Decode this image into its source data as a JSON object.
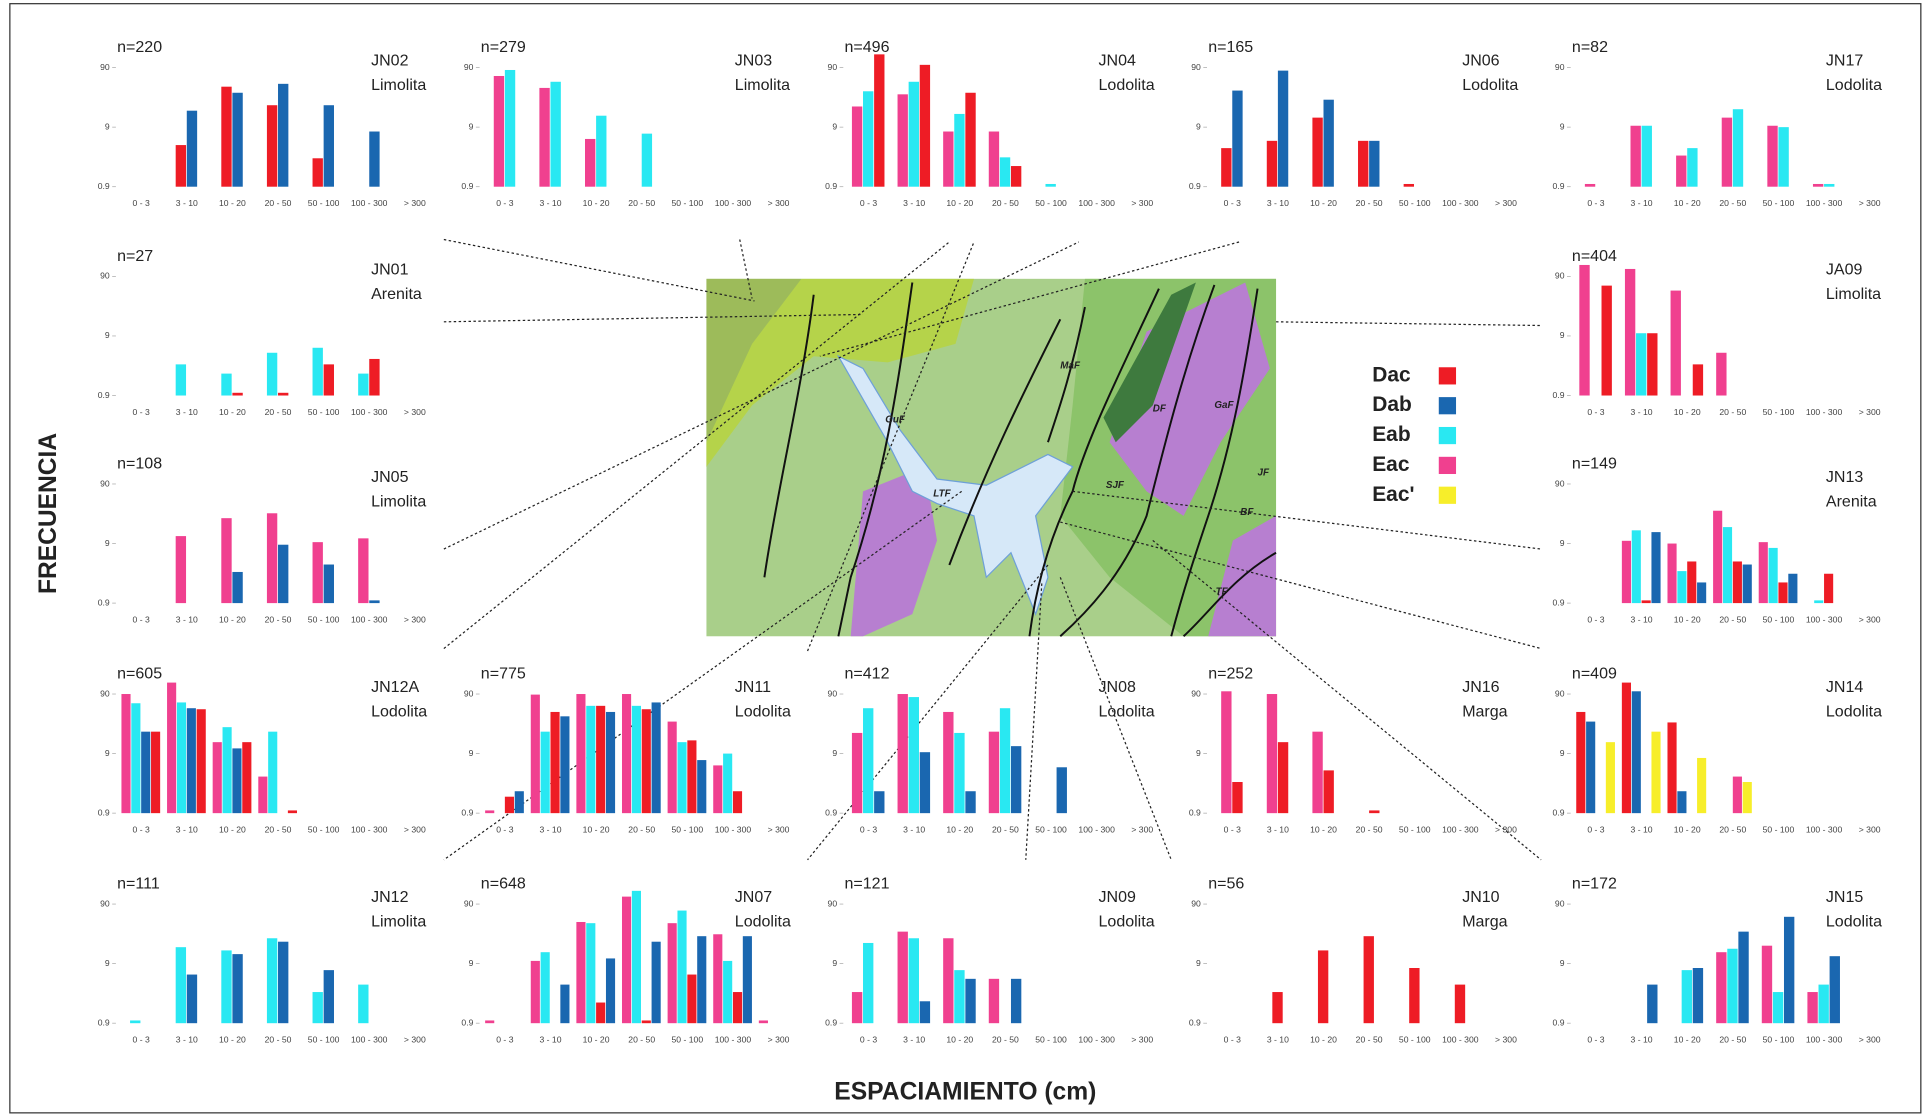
{
  "axis_titles": {
    "y": "FRECUENCIA",
    "x": "ESPACIAMIENTO (cm)"
  },
  "legend": [
    {
      "name": "Dac",
      "color": "#ee1c25"
    },
    {
      "name": "Dab",
      "color": "#1a67b0"
    },
    {
      "name": "Eab",
      "color": "#29e8f2"
    },
    {
      "name": "Eac",
      "color": "#f0408f"
    },
    {
      "name": "Eac'",
      "color": "#f7ee2a"
    }
  ],
  "map": {
    "labels": [
      "MaF",
      "GuF",
      "DF",
      "GaF",
      "SJF",
      "LTF",
      "JF",
      "BF",
      "TF"
    ]
  },
  "chart_data": [
    {
      "type": "bar",
      "annotation": "n=220",
      "title": "JN02",
      "subtitle": "Limolita",
      "log_scale": true,
      "ylim": [
        0.9,
        200
      ],
      "yticks": [
        0.9,
        9,
        90
      ],
      "categories": [
        "0 - 3",
        "3 - 10",
        "10 - 20",
        "20 - 50",
        "50 - 100",
        "100 - 300",
        "> 300"
      ],
      "series": [
        {
          "name": "Dac",
          "values": [
            null,
            4.5,
            43,
            21,
            2.7,
            null,
            null
          ]
        },
        {
          "name": "Dab",
          "values": [
            null,
            17,
            34,
            48,
            21,
            7.6,
            null
          ]
        }
      ]
    },
    {
      "type": "bar",
      "annotation": "n=279",
      "title": "JN03",
      "subtitle": "Limolita",
      "log_scale": true,
      "ylim": [
        0.9,
        200
      ],
      "yticks": [
        0.9,
        9,
        90
      ],
      "categories": [
        "0 - 3",
        "3 - 10",
        "10 - 20",
        "20 - 50",
        "50 - 100",
        "100 - 300",
        "> 300"
      ],
      "series": [
        {
          "name": "Eac",
          "values": [
            65,
            41,
            5.7,
            null,
            null,
            null,
            null
          ]
        },
        {
          "name": "Eab",
          "values": [
            82,
            52,
            14,
            7,
            null,
            null,
            null
          ]
        }
      ]
    },
    {
      "type": "bar",
      "annotation": "n=496",
      "title": "JN04",
      "subtitle": "Lodolita",
      "log_scale": true,
      "ylim": [
        0.9,
        200
      ],
      "yticks": [
        0.9,
        9,
        90
      ],
      "categories": [
        "0 - 3",
        "3 - 10",
        "10 - 20",
        "20 - 50",
        "50 - 100",
        "100 - 300",
        "> 300"
      ],
      "series": [
        {
          "name": "Eac",
          "values": [
            20,
            32,
            7.6,
            7.6,
            null,
            null,
            null
          ]
        },
        {
          "name": "Eab",
          "values": [
            36,
            52,
            15,
            2.8,
            1.0,
            null,
            null
          ]
        },
        {
          "name": "Dac",
          "values": [
            150,
            100,
            34,
            2,
            null,
            null,
            null
          ]
        }
      ]
    },
    {
      "type": "bar",
      "annotation": "n=165",
      "title": "JN06",
      "subtitle": "Lodolita",
      "log_scale": true,
      "ylim": [
        0.9,
        200
      ],
      "yticks": [
        0.9,
        9,
        90
      ],
      "categories": [
        "0 - 3",
        "3 - 10",
        "10 - 20",
        "20 - 50",
        "50 - 100",
        "100 - 300",
        "> 300"
      ],
      "series": [
        {
          "name": "Dac",
          "values": [
            4,
            5.3,
            13,
            5.3,
            1.0,
            null,
            null
          ]
        },
        {
          "name": "Dab",
          "values": [
            37,
            80,
            26,
            5.3,
            null,
            null,
            null
          ]
        }
      ]
    },
    {
      "type": "bar",
      "annotation": "n=82",
      "title": "JN17",
      "subtitle": "Lodolita",
      "log_scale": true,
      "ylim": [
        0.9,
        200
      ],
      "yticks": [
        0.9,
        9,
        90
      ],
      "categories": [
        "0 - 3",
        "3 - 10",
        "10 - 20",
        "20 - 50",
        "50 - 100",
        "100 - 300",
        "> 300"
      ],
      "series": [
        {
          "name": "Eac",
          "values": [
            1.0,
            9.5,
            3,
            13,
            9.5,
            1.0,
            null
          ]
        },
        {
          "name": "Eab",
          "values": [
            null,
            9.5,
            4,
            18,
            9,
            1.0,
            null
          ]
        }
      ]
    },
    {
      "type": "bar",
      "annotation": "n=27",
      "title": "JN01",
      "subtitle": "Arenita",
      "log_scale": true,
      "ylim": [
        0.9,
        200
      ],
      "yticks": [
        0.9,
        9,
        90
      ],
      "categories": [
        "0 - 3",
        "3 - 10",
        "10 - 20",
        "20 - 50",
        "50 - 100",
        "100 - 300",
        "> 300"
      ],
      "series": [
        {
          "name": "Eab",
          "values": [
            null,
            3,
            2.1,
            4.7,
            5.7,
            2.1,
            null
          ]
        },
        {
          "name": "Dac",
          "values": [
            null,
            null,
            1.0,
            1.0,
            3,
            3.7,
            null
          ]
        }
      ]
    },
    {
      "type": "bar",
      "annotation": "n=404",
      "title": "JA09",
      "subtitle": "Limolita",
      "log_scale": true,
      "ylim": [
        0.9,
        200
      ],
      "yticks": [
        0.9,
        9,
        90
      ],
      "categories": [
        "0 - 3",
        "3 - 10",
        "10 - 20",
        "20 - 50",
        "50 - 100",
        "100 - 300",
        "> 300"
      ],
      "series": [
        {
          "name": "Eac",
          "values": [
            140,
            120,
            52,
            4.7,
            null,
            null,
            null
          ]
        },
        {
          "name": "Eab",
          "values": [
            null,
            10,
            null,
            null,
            null,
            null,
            null
          ]
        },
        {
          "name": "Dac",
          "values": [
            63,
            10,
            3,
            null,
            null,
            null,
            null
          ]
        }
      ]
    },
    {
      "type": "bar",
      "annotation": "n=108",
      "title": "JN05",
      "subtitle": "Limolita",
      "log_scale": true,
      "ylim": [
        0.9,
        200
      ],
      "yticks": [
        0.9,
        9,
        90
      ],
      "categories": [
        "0 - 3",
        "3 - 10",
        "10 - 20",
        "20 - 50",
        "50 - 100",
        "100 - 300",
        "> 300"
      ],
      "series": [
        {
          "name": "Eac",
          "values": [
            null,
            12,
            24,
            29,
            9.5,
            11,
            null
          ]
        },
        {
          "name": "Dab",
          "values": [
            null,
            null,
            3,
            8.6,
            4,
            1.0,
            null
          ]
        }
      ]
    },
    {
      "type": "bar",
      "annotation": "n=149",
      "title": "JN13",
      "subtitle": "Arenita",
      "log_scale": true,
      "ylim": [
        0.9,
        200
      ],
      "yticks": [
        0.9,
        9,
        90
      ],
      "categories": [
        "0 - 3",
        "3 - 10",
        "10 - 20",
        "20 - 50",
        "50 - 100",
        "100 - 300",
        "> 300"
      ],
      "series": [
        {
          "name": "Eac",
          "values": [
            null,
            10,
            9,
            32,
            9.5,
            null,
            null
          ]
        },
        {
          "name": "Eab",
          "values": [
            null,
            15,
            3.1,
            17,
            7.6,
            1.0,
            null
          ]
        },
        {
          "name": "Dac",
          "values": [
            null,
            1.0,
            4.5,
            4.5,
            2,
            2.8,
            null
          ]
        },
        {
          "name": "Dab",
          "values": [
            null,
            14,
            2,
            4,
            2.8,
            null,
            null
          ]
        }
      ]
    },
    {
      "type": "bar",
      "annotation": "n=605",
      "title": "JN12A",
      "subtitle": "Lodolita",
      "log_scale": true,
      "ylim": [
        0.9,
        200
      ],
      "yticks": [
        0.9,
        9,
        90
      ],
      "categories": [
        "0 - 3",
        "3 - 10",
        "10 - 20",
        "20 - 50",
        "50 - 100",
        "100 - 300",
        "> 300"
      ],
      "series": [
        {
          "name": "Eac",
          "values": [
            90,
            140,
            14,
            3.7,
            null,
            null,
            null
          ]
        },
        {
          "name": "Eab",
          "values": [
            63,
            65,
            25,
            21,
            null,
            null,
            null
          ]
        },
        {
          "name": "Dab",
          "values": [
            21,
            52,
            11,
            null,
            null,
            null,
            null
          ]
        },
        {
          "name": "Dac",
          "values": [
            21,
            50,
            14,
            1.0,
            null,
            null,
            null
          ]
        }
      ]
    },
    {
      "type": "bar",
      "annotation": "n=775",
      "title": "JN11",
      "subtitle": "Lodolita",
      "log_scale": true,
      "ylim": [
        0.9,
        200
      ],
      "yticks": [
        0.9,
        9,
        90
      ],
      "categories": [
        "0 - 3",
        "3 - 10",
        "10 - 20",
        "20 - 50",
        "50 - 100",
        "100 - 300",
        "> 300"
      ],
      "series": [
        {
          "name": "Eac",
          "values": [
            1.0,
            88,
            90,
            90,
            31,
            5.7,
            null
          ]
        },
        {
          "name": "Eab",
          "values": [
            null,
            21,
            57,
            57,
            14,
            9,
            null
          ]
        },
        {
          "name": "Dac",
          "values": [
            1.7,
            45,
            57,
            50,
            15,
            2.1,
            null
          ]
        },
        {
          "name": "Dab",
          "values": [
            2.1,
            38,
            45,
            65,
            7,
            null,
            null
          ]
        }
      ]
    },
    {
      "type": "bar",
      "annotation": "n=412",
      "title": "JN08",
      "subtitle": "Lodolita",
      "log_scale": true,
      "ylim": [
        0.9,
        200
      ],
      "yticks": [
        0.9,
        9,
        90
      ],
      "categories": [
        "0 - 3",
        "3 - 10",
        "10 - 20",
        "20 - 50",
        "50 - 100",
        "100 - 300",
        "> 300"
      ],
      "series": [
        {
          "name": "Eac",
          "values": [
            20,
            90,
            45,
            21,
            null,
            null,
            null
          ]
        },
        {
          "name": "Eab",
          "values": [
            52,
            80,
            20,
            52,
            null,
            null,
            null
          ]
        },
        {
          "name": "Dab",
          "values": [
            2.1,
            9.5,
            2.1,
            12,
            5.3,
            null,
            null
          ]
        }
      ]
    },
    {
      "type": "bar",
      "annotation": "n=252",
      "title": "JN16",
      "subtitle": "Marga",
      "log_scale": true,
      "ylim": [
        0.9,
        200
      ],
      "yticks": [
        0.9,
        9,
        90
      ],
      "categories": [
        "0 - 3",
        "3 - 10",
        "10 - 20",
        "20 - 50",
        "50 - 100",
        "100 - 300",
        "> 300"
      ],
      "series": [
        {
          "name": "Eac",
          "values": [
            100,
            90,
            21,
            null,
            null,
            null,
            null
          ]
        },
        {
          "name": "Dac",
          "values": [
            3,
            14,
            4.7,
            1.0,
            null,
            null,
            null
          ]
        }
      ]
    },
    {
      "type": "bar",
      "annotation": "n=409",
      "title": "JN14",
      "subtitle": "Lodolita",
      "log_scale": true,
      "ylim": [
        0.9,
        200
      ],
      "yticks": [
        0.9,
        9,
        90
      ],
      "categories": [
        "0 - 3",
        "3 - 10",
        "10 - 20",
        "20 - 50",
        "50 - 100",
        "100 - 300",
        "> 300"
      ],
      "series": [
        {
          "name": "Dac",
          "values": [
            45,
            140,
            30,
            null,
            null,
            null,
            null
          ]
        },
        {
          "name": "Dab",
          "values": [
            31,
            100,
            2.1,
            null,
            null,
            null,
            null
          ]
        },
        {
          "name": "Eac",
          "values": [
            null,
            null,
            null,
            3.7,
            null,
            null,
            null
          ]
        },
        {
          "name": "Eac'",
          "values": [
            14,
            21,
            7.6,
            3,
            null,
            null,
            null
          ]
        }
      ]
    },
    {
      "type": "bar",
      "annotation": "n=111",
      "title": "JN12",
      "subtitle": "Limolita",
      "log_scale": true,
      "ylim": [
        0.9,
        200
      ],
      "yticks": [
        0.9,
        9,
        90
      ],
      "categories": [
        "0 - 3",
        "3 - 10",
        "10 - 20",
        "20 - 50",
        "50 - 100",
        "100 - 300",
        "> 300"
      ],
      "series": [
        {
          "name": "Eab",
          "values": [
            1.0,
            17,
            15,
            24,
            3,
            4,
            null
          ]
        },
        {
          "name": "Dab",
          "values": [
            null,
            5.9,
            13,
            21,
            7,
            null,
            null
          ]
        }
      ]
    },
    {
      "type": "bar",
      "annotation": "n=648",
      "title": "JN07",
      "subtitle": "Lodolita",
      "log_scale": true,
      "ylim": [
        0.9,
        200
      ],
      "yticks": [
        0.9,
        9,
        90
      ],
      "categories": [
        "0 - 3",
        "3 - 10",
        "10 - 20",
        "20 - 50",
        "50 - 100",
        "100 - 300",
        "> 300"
      ],
      "series": [
        {
          "name": "Eac",
          "values": [
            1.0,
            10,
            45,
            120,
            43,
            28,
            1.0
          ]
        },
        {
          "name": "Eab",
          "values": [
            null,
            14,
            43,
            150,
            70,
            10,
            null
          ]
        },
        {
          "name": "Dac",
          "values": [
            null,
            null,
            2,
            1.0,
            5.9,
            3,
            null
          ]
        },
        {
          "name": "Dab",
          "values": [
            null,
            4,
            11,
            21,
            26,
            26,
            null
          ]
        }
      ]
    },
    {
      "type": "bar",
      "annotation": "n=121",
      "title": "JN09",
      "subtitle": "Lodolita",
      "log_scale": true,
      "ylim": [
        0.9,
        200
      ],
      "yticks": [
        0.9,
        9,
        90
      ],
      "categories": [
        "0 - 3",
        "3 - 10",
        "10 - 20",
        "20 - 50",
        "50 - 100",
        "100 - 300",
        "> 300"
      ],
      "series": [
        {
          "name": "Eac",
          "values": [
            3,
            31,
            24,
            5,
            null,
            null,
            null
          ]
        },
        {
          "name": "Eab",
          "values": [
            20,
            24,
            7,
            null,
            null,
            null,
            null
          ]
        },
        {
          "name": "Dab",
          "values": [
            null,
            2.1,
            5,
            5,
            null,
            null,
            null
          ]
        }
      ]
    },
    {
      "type": "bar",
      "annotation": "n=56",
      "title": "JN10",
      "subtitle": "Marga",
      "log_scale": true,
      "ylim": [
        0.9,
        200
      ],
      "yticks": [
        0.9,
        9,
        90
      ],
      "categories": [
        "0 - 3",
        "3 - 10",
        "10 - 20",
        "20 - 50",
        "50 - 100",
        "100 - 300",
        "> 300"
      ],
      "series": [
        {
          "name": "Dac",
          "values": [
            null,
            3,
            15,
            26,
            7.6,
            4,
            null
          ]
        }
      ]
    },
    {
      "type": "bar",
      "annotation": "n=172",
      "title": "JN15",
      "subtitle": "Lodolita",
      "log_scale": true,
      "ylim": [
        0.9,
        200
      ],
      "yticks": [
        0.9,
        9,
        90
      ],
      "categories": [
        "0 - 3",
        "3 - 10",
        "10 - 20",
        "20 - 50",
        "50 - 100",
        "100 - 300",
        "> 300"
      ],
      "series": [
        {
          "name": "Eac",
          "values": [
            null,
            null,
            null,
            14,
            18,
            3,
            null
          ]
        },
        {
          "name": "Eab",
          "values": [
            null,
            null,
            7,
            16,
            3,
            4,
            null
          ]
        },
        {
          "name": "Dab",
          "values": [
            null,
            4,
            7.6,
            31,
            55,
            12,
            null
          ]
        }
      ]
    }
  ]
}
